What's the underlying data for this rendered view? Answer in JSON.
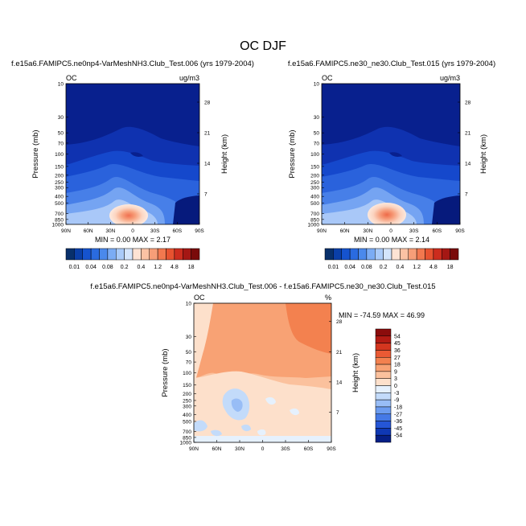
{
  "chart_data": {
    "type": "heatmap",
    "title": "OC DJF",
    "panels": [
      {
        "id": "top-left",
        "subtitle": "f.e15a6.FAMIPC5.ne0np4-VarMeshNH3.Club_Test.006 (yrs 1979-2004)",
        "left_label": "OC",
        "right_label": "ug/m3",
        "stats": "MIN =  0.00  MAX =  2.17",
        "min": 0.0,
        "max": 2.17
      },
      {
        "id": "top-right",
        "subtitle": "f.e15a6.FAMIPC5.ne30_ne30.Club_Test.015 (yrs 1979-2004)",
        "left_label": "OC",
        "right_label": "ug/m3",
        "stats": "MIN =  0.00  MAX =  2.14",
        "min": 0.0,
        "max": 2.14
      },
      {
        "id": "bottom-diff",
        "subtitle": "f.e15a6.FAMIPC5.ne0np4-VarMeshNH3.Club_Test.006 - f.e15a6.FAMIPC5.ne30_ne30.Club_Test.015",
        "left_label": "OC",
        "right_label": "%",
        "stats": "MIN = -74.59  MAX =  46.99",
        "min": -74.59,
        "max": 46.99
      }
    ],
    "xlabel": "",
    "ylabel": "Pressure (mb)",
    "y2label": "Height (km)",
    "x_ticks": [
      "90N",
      "60N",
      "30N",
      "0",
      "30S",
      "60S",
      "90S"
    ],
    "x_range": [
      90,
      -90
    ],
    "y_ticks": [
      10,
      30,
      50,
      70,
      100,
      150,
      200,
      250,
      300,
      400,
      500,
      700,
      850,
      1000
    ],
    "y_range": [
      10,
      1000
    ],
    "y2_ticks": [
      28,
      21,
      14,
      7
    ],
    "colorbar_top": {
      "orientation": "horizontal",
      "labels": [
        "0.01",
        "0.04",
        "0.08",
        "0.2",
        "0.4",
        "1.2",
        "4.8",
        "18"
      ],
      "colors": [
        "#08306b",
        "#0a3fa8",
        "#1553cf",
        "#2a6be0",
        "#4a89ec",
        "#7bacf4",
        "#aacbf9",
        "#d4e5fc",
        "#fde3d4",
        "#fbc2a4",
        "#f79e78",
        "#f2784f",
        "#e75230",
        "#cc2c1e",
        "#a51714",
        "#7a0a0a"
      ]
    },
    "colorbar_bottom": {
      "orientation": "vertical",
      "labels": [
        "54",
        "45",
        "36",
        "27",
        "18",
        "9",
        "3",
        "0",
        "-3",
        "-9",
        "-18",
        "-27",
        "-36",
        "-45",
        "-54"
      ],
      "colors": [
        "#8b0c0c",
        "#b31b14",
        "#d4361f",
        "#ea5a34",
        "#f3814f",
        "#f8a274",
        "#fbc19d",
        "#fde0cb",
        "#e6f1fd",
        "#c3dbfa",
        "#98bdf6",
        "#6c9cf0",
        "#4579e6",
        "#2556d6",
        "#0f38b4",
        "#061f86"
      ]
    }
  }
}
